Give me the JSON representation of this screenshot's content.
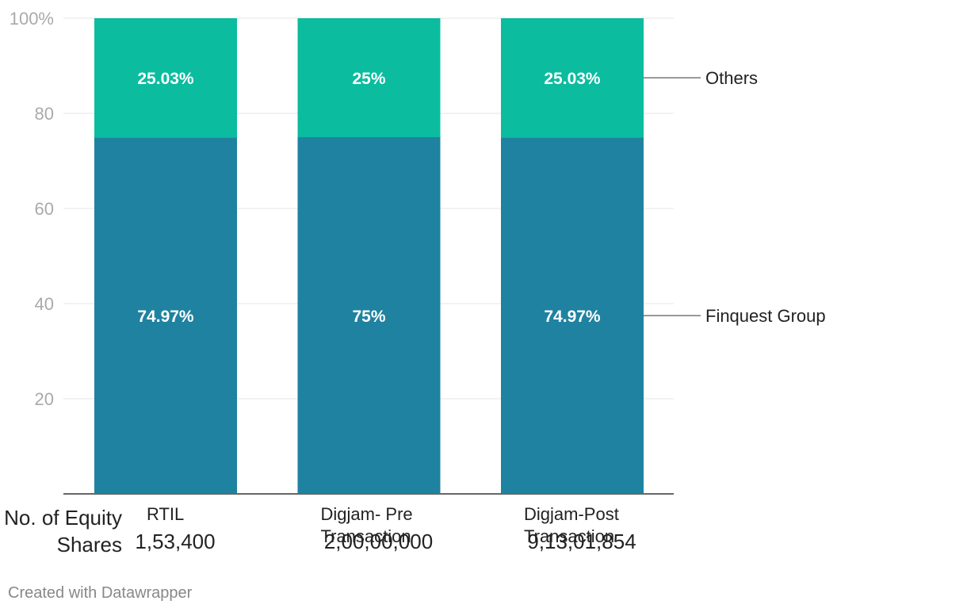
{
  "chart_data": {
    "type": "bar",
    "stacked": true,
    "categories": [
      "RTIL",
      "Digjam- Pre Transaction",
      "Digjam-Post Transaction"
    ],
    "series": [
      {
        "name": "Finquest Group",
        "values": [
          74.97,
          75,
          74.97
        ],
        "labels": [
          "74.97%",
          "75%",
          "74.97%"
        ],
        "color": "#1f82a0"
      },
      {
        "name": "Others",
        "values": [
          25.03,
          25,
          25.03
        ],
        "labels": [
          "25.03%",
          "25%",
          "25.03%"
        ],
        "color": "#0bbc9f"
      }
    ],
    "ylim": [
      0,
      100
    ],
    "yticks": [
      20,
      40,
      60,
      80,
      100
    ],
    "ytick_labels": [
      "20",
      "40",
      "60",
      "80",
      "100%"
    ],
    "grid": true,
    "legend": "right",
    "row_title": "No. of Equity Shares",
    "equity_shares": [
      "1,53,400",
      "2,00,00,000",
      "9,13,01,854"
    ]
  },
  "credit": "Created with Datawrapper"
}
